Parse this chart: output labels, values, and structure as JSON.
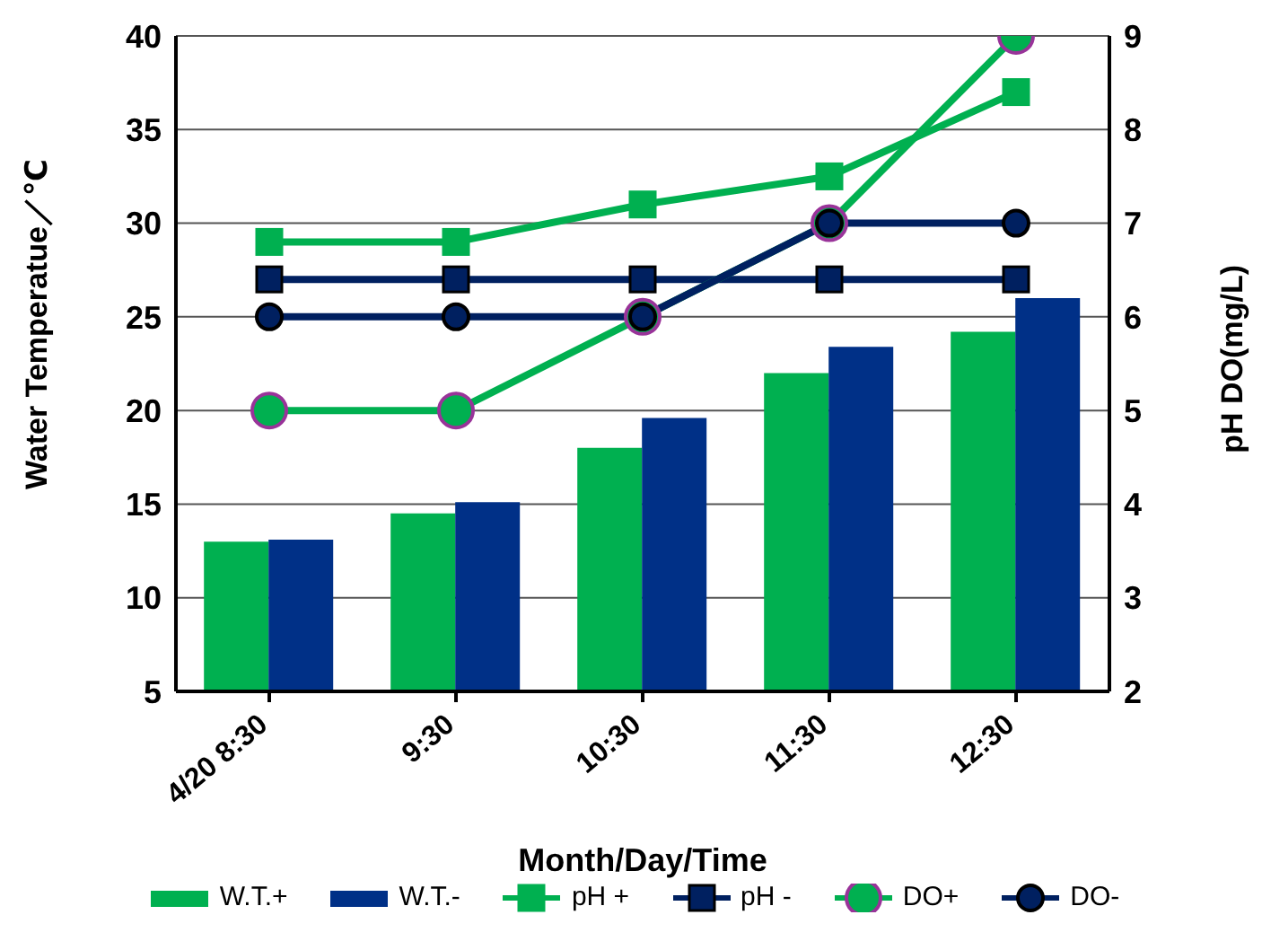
{
  "chart_data": {
    "type": "bar",
    "xlabel": "Month/Day/Time",
    "ylabel": "Water Temperatue／℃",
    "y2label": "pH DO(mg/L)",
    "categories": [
      "4/20 8:30",
      "9:30",
      "10:30",
      "11:30",
      "12:30"
    ],
    "series": [
      {
        "name": "W.T.+",
        "color": "#00b050",
        "values": [
          13,
          14.5,
          18,
          22,
          24.2
        ]
      },
      {
        "name": "W.T.-",
        "color": "#003087",
        "values": [
          13.1,
          15.1,
          19.6,
          23.4,
          26
        ]
      },
      {
        "name": "pH +",
        "type": "line",
        "axis": "y2",
        "marker": "square",
        "color": "#00b050",
        "values": [
          6.8,
          6.8,
          7.2,
          7.5,
          8.4
        ]
      },
      {
        "name": "pH -",
        "type": "line",
        "axis": "y2",
        "marker": "square",
        "color": "#002060",
        "values": [
          6.4,
          6.4,
          6.4,
          6.4,
          6.4
        ]
      },
      {
        "name": "DO+",
        "type": "line",
        "axis": "y2",
        "marker": "circle",
        "color": "#00b050",
        "values": [
          5,
          5,
          6,
          7,
          9
        ]
      },
      {
        "name": "DO-",
        "type": "line",
        "axis": "y2",
        "marker": "circle",
        "color": "#002060",
        "values": [
          6,
          6,
          6,
          7,
          7
        ]
      }
    ],
    "ylim": [
      5,
      40
    ],
    "yticks": [
      5,
      10,
      15,
      20,
      25,
      30,
      35,
      40
    ],
    "y2lim": [
      2,
      9
    ],
    "y2ticks": [
      2,
      3,
      4,
      5,
      6,
      7,
      8,
      9
    ],
    "grid": "y",
    "legend": "bottom"
  }
}
